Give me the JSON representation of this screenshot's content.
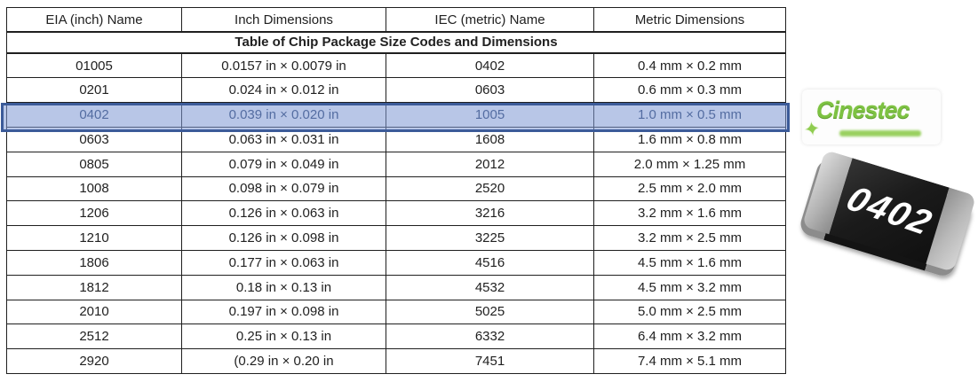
{
  "table": {
    "title": "Table of Chip Package Size Codes and Dimensions",
    "columns": [
      "EIA (inch) Name",
      "Inch Dimensions",
      "IEC (metric) Name",
      "Metric Dimensions"
    ],
    "rows": [
      [
        "01005",
        "0.0157 in × 0.0079 in",
        "0402",
        "0.4 mm × 0.2 mm"
      ],
      [
        "0201",
        "0.024 in × 0.012 in",
        "0603",
        "0.6 mm × 0.3 mm"
      ],
      [
        "0402",
        "0.039 in × 0.020 in",
        "1005",
        "1.0 mm × 0.5 mm"
      ],
      [
        "0603",
        "0.063 in × 0.031 in",
        "1608",
        "1.6 mm × 0.8 mm"
      ],
      [
        "0805",
        "0.079 in × 0.049 in",
        "2012",
        "2.0 mm × 1.25 mm"
      ],
      [
        "1008",
        "0.098 in × 0.079 in",
        "2520",
        "2.5 mm × 2.0 mm"
      ],
      [
        "1206",
        "0.126 in × 0.063 in",
        "3216",
        "3.2 mm × 1.6 mm"
      ],
      [
        "1210",
        "0.126 in × 0.098 in",
        "3225",
        "3.2 mm × 2.5 mm"
      ],
      [
        "1806",
        "0.177 in × 0.063 in",
        "4516",
        "4.5 mm × 1.6 mm"
      ],
      [
        "1812",
        "0.18 in × 0.13 in",
        "4532",
        "4.5 mm × 3.2 mm"
      ],
      [
        "2010",
        "0.197 in × 0.098 in",
        "5025",
        "5.0 mm × 2.5 mm"
      ],
      [
        "2512",
        "0.25 in × 0.13 in",
        "6332",
        "6.4 mm × 3.2 mm"
      ],
      [
        "2920",
        "(0.29 in × 0.20 in",
        "7451",
        "7.4 mm × 5.1 mm"
      ]
    ],
    "highlighted_row_index": 2,
    "highlight_colors": {
      "fill": "#7e98d3",
      "border": "#3c5b99"
    }
  },
  "logo": {
    "text": "Cinestec",
    "star_glyph": "✦",
    "accent_color": "#7dc242"
  },
  "chip_photo": {
    "label": "0402",
    "body_color": "#1e1e1e",
    "cap_color": "#b5b5b5"
  }
}
